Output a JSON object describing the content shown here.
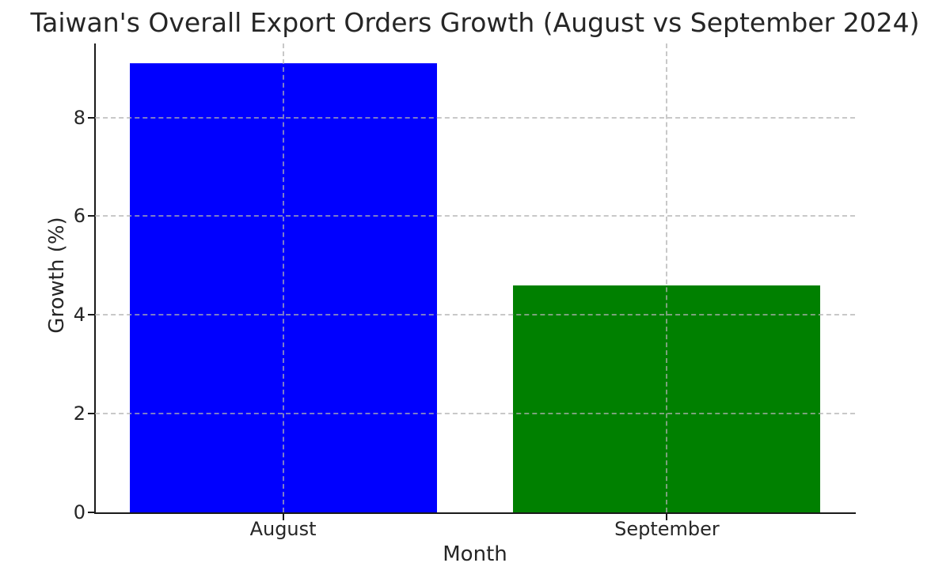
{
  "chart_data": {
    "type": "bar",
    "title": "Taiwan's Overall Export Orders Growth (August vs September 2024)",
    "xlabel": "Month",
    "ylabel": "Growth (%)",
    "categories": [
      "August",
      "September"
    ],
    "values": [
      9.1,
      4.6
    ],
    "bar_colors": [
      "#0000ff",
      "#008000"
    ],
    "ylim": [
      0,
      9.5
    ],
    "yticks": [
      0,
      2,
      4,
      6,
      8
    ],
    "grid": "dashed, both axes, drawn above bars",
    "grid_color": "#b0b0b0",
    "axis_color": "#1a1a1a",
    "legend_position": "none"
  }
}
